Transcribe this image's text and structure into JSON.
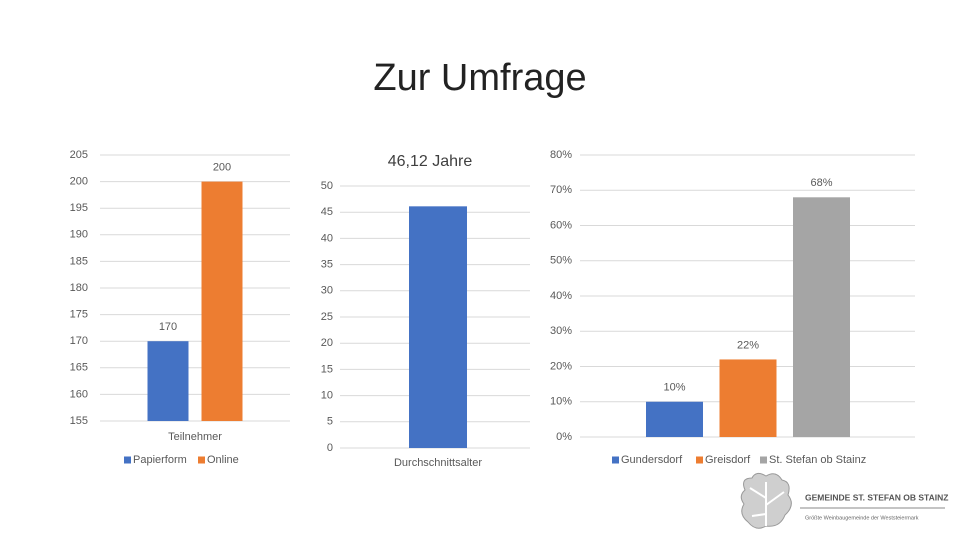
{
  "title": "Zur Umfrage",
  "chart_data": [
    {
      "type": "bar",
      "categories": [
        "Teilnehmer"
      ],
      "series": [
        {
          "name": "Papierform",
          "color": "#4472c4",
          "values": [
            170
          ]
        },
        {
          "name": "Online",
          "color": "#ed7d31",
          "values": [
            200
          ]
        }
      ],
      "ylim": [
        155,
        205
      ],
      "yticks": [
        155,
        160,
        165,
        170,
        175,
        180,
        185,
        190,
        195,
        200,
        205
      ],
      "grid": true,
      "legend": "bottom"
    },
    {
      "type": "bar",
      "title": "46,12 Jahre",
      "categories": [
        "Durchschnittsalter"
      ],
      "values": [
        46.12
      ],
      "color": "#4472c4",
      "ylim": [
        0,
        50
      ],
      "yticks": [
        0,
        5,
        10,
        15,
        20,
        25,
        30,
        35,
        40,
        45,
        50
      ],
      "grid": true
    },
    {
      "type": "bar",
      "categories": [
        "Gundersdorf",
        "Greisdorf",
        "St. Stefan ob Stainz"
      ],
      "values": [
        10,
        22,
        68
      ],
      "value_labels": [
        "10%",
        "22%",
        "68%"
      ],
      "colors": [
        "#4472c4",
        "#ed7d31",
        "#a5a5a5"
      ],
      "ylim": [
        0,
        80
      ],
      "yticks": [
        {
          "value": 0,
          "label": "0%"
        },
        {
          "value": 10,
          "label": "10%"
        },
        {
          "value": 20,
          "label": "20%"
        },
        {
          "value": 30,
          "label": "30%"
        },
        {
          "value": 40,
          "label": "40%"
        },
        {
          "value": 50,
          "label": "50%"
        },
        {
          "value": 60,
          "label": "60%"
        },
        {
          "value": 70,
          "label": "70%"
        },
        {
          "value": 80,
          "label": "80%"
        }
      ],
      "grid": true,
      "legend": "bottom"
    }
  ],
  "logo": {
    "name": "GEMEINDE ST. STEFAN OB STAINZ",
    "tagline": "Größte Weinbaugemeinde der Weststeiermark"
  }
}
